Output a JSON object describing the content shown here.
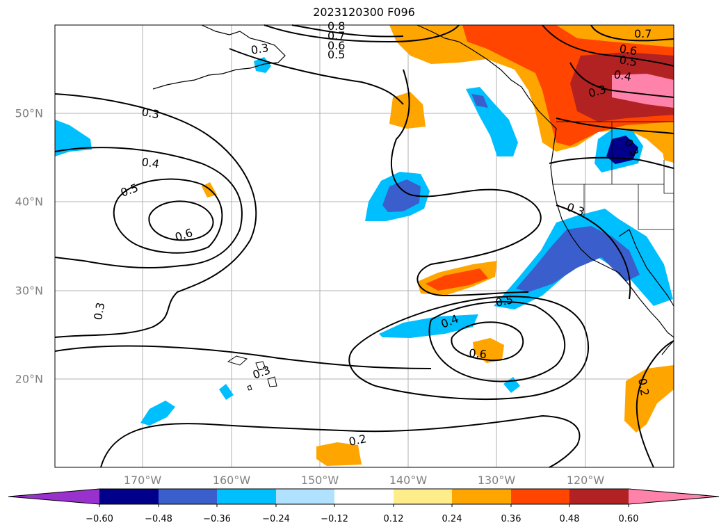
{
  "title": "2023120300 F096",
  "map": {
    "lat_labels": [
      "50°N",
      "40°N",
      "30°N",
      "20°N"
    ],
    "lon_labels": [
      "170°W",
      "160°W",
      "150°W",
      "140°W",
      "130°W",
      "120°W"
    ],
    "contour_labels": [
      "0.3",
      "0.4",
      "0.5",
      "0.6",
      "0.3",
      "0.3",
      "0.2",
      "0.3",
      "0.4",
      "0.5",
      "0.6",
      "0.3",
      "0.2",
      "0.7",
      "0.6",
      "0.5",
      "0.4",
      "0.3",
      "0.8",
      "0.7",
      "0.6",
      "0.5",
      "0.3"
    ]
  },
  "colorbar": {
    "tick_labels": [
      "−0.60",
      "−0.48",
      "−0.36",
      "−0.24",
      "−0.12",
      "0.12",
      "0.24",
      "0.36",
      "0.48",
      "0.60"
    ],
    "colors": [
      "#9932cc",
      "#00008b",
      "#3a5fcd",
      "#00bfff",
      "#b0e2ff",
      "#ffffff",
      "#ffec8b",
      "#ffa500",
      "#ff4500",
      "#b22222",
      "#ff82ab"
    ]
  }
}
